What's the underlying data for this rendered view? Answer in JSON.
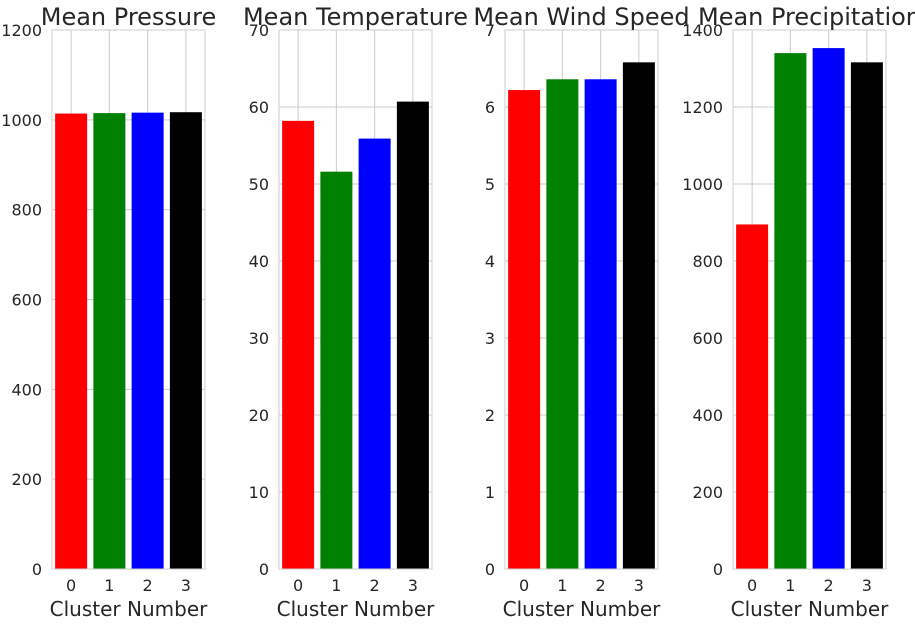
{
  "chart_data": [
    {
      "type": "bar",
      "title": "Mean Pressure",
      "xlabel": "Cluster Number",
      "ylabel": "",
      "categories": [
        "0",
        "1",
        "2",
        "3"
      ],
      "values": [
        1014,
        1015,
        1016,
        1017
      ],
      "colors": [
        "#ff0000",
        "#008000",
        "#0000ff",
        "#000000"
      ],
      "ylim": [
        0,
        1200
      ],
      "yticks": [
        "0",
        "200",
        "400",
        "600",
        "800",
        "1000",
        "1200"
      ],
      "ytick_values": [
        0,
        200,
        400,
        600,
        800,
        1000,
        1200
      ],
      "grid": true
    },
    {
      "type": "bar",
      "title": "Mean Temperature",
      "xlabel": "Cluster Number",
      "ylabel": "",
      "categories": [
        "0",
        "1",
        "2",
        "3"
      ],
      "values": [
        58.2,
        51.6,
        55.9,
        60.7
      ],
      "colors": [
        "#ff0000",
        "#008000",
        "#0000ff",
        "#000000"
      ],
      "ylim": [
        0,
        70
      ],
      "yticks": [
        "0",
        "10",
        "20",
        "30",
        "40",
        "50",
        "60",
        "70"
      ],
      "ytick_values": [
        0,
        10,
        20,
        30,
        40,
        50,
        60,
        70
      ],
      "grid": true
    },
    {
      "type": "bar",
      "title": "Mean Wind Speed",
      "xlabel": "Cluster Number",
      "ylabel": "",
      "categories": [
        "0",
        "1",
        "2",
        "3"
      ],
      "values": [
        6.22,
        6.36,
        6.36,
        6.58
      ],
      "colors": [
        "#ff0000",
        "#008000",
        "#0000ff",
        "#000000"
      ],
      "ylim": [
        0,
        7
      ],
      "yticks": [
        "0",
        "1",
        "2",
        "3",
        "4",
        "5",
        "6",
        "7"
      ],
      "ytick_values": [
        0,
        1,
        2,
        3,
        4,
        5,
        6,
        7
      ],
      "grid": true
    },
    {
      "type": "bar",
      "title": "Mean Precipitation",
      "xlabel": "Cluster Number",
      "ylabel": "",
      "categories": [
        "0",
        "1",
        "2",
        "3"
      ],
      "values": [
        895,
        1340,
        1353,
        1316
      ],
      "colors": [
        "#ff0000",
        "#008000",
        "#0000ff",
        "#000000"
      ],
      "ylim": [
        0,
        1400
      ],
      "yticks": [
        "0",
        "200",
        "400",
        "600",
        "800",
        "1000",
        "1200",
        "1400"
      ],
      "ytick_values": [
        0,
        200,
        400,
        600,
        800,
        1000,
        1200,
        1400
      ],
      "grid": true
    }
  ]
}
